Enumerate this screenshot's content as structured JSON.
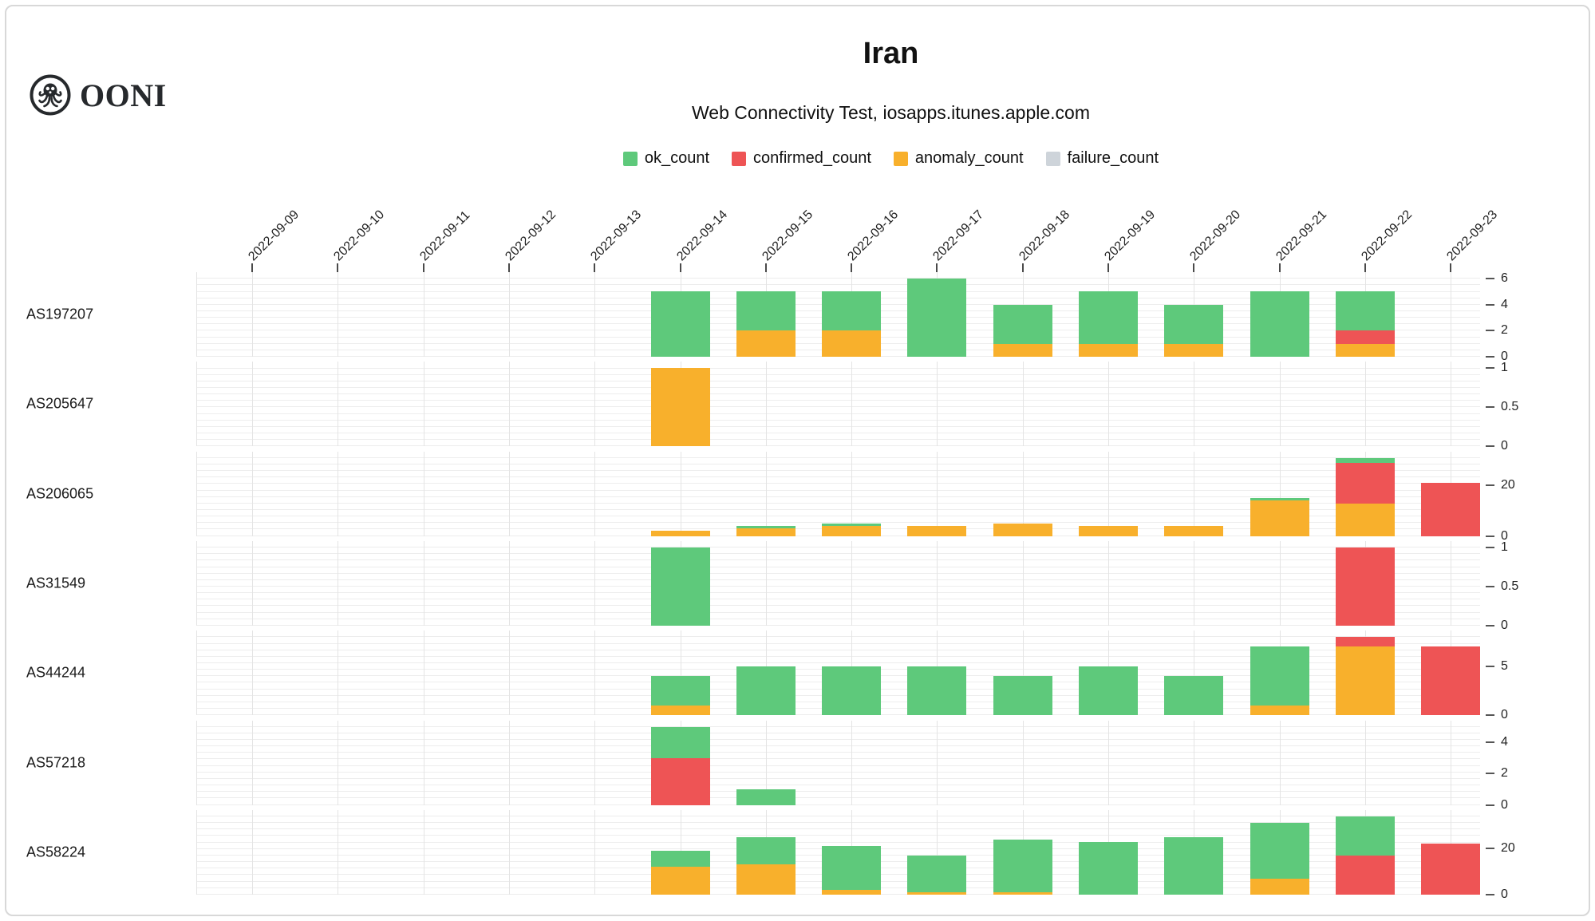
{
  "header": {
    "logo_text": "OONI",
    "title": "Iran",
    "subtitle": "Web Connectivity Test, iosapps.itunes.apple.com"
  },
  "colors": {
    "ok_count": "#5ec97b",
    "confirmed_count": "#ee5455",
    "anomaly_count": "#f8b02c",
    "failure_count": "#ced4da"
  },
  "legend": {
    "items": [
      {
        "label": "ok_count",
        "series": "ok_count"
      },
      {
        "label": "confirmed_count",
        "series": "confirmed_count"
      },
      {
        "label": "anomaly_count",
        "series": "anomaly_count"
      },
      {
        "label": "failure_count",
        "series": "failure_count"
      }
    ]
  },
  "chart_data": {
    "type": "bar",
    "stacked": true,
    "title": "Iran",
    "subtitle": "Web Connectivity Test, iosapps.itunes.apple.com",
    "legend_position": "top",
    "grid": true,
    "x_dates": [
      "2022-09-09",
      "2022-09-10",
      "2022-09-11",
      "2022-09-12",
      "2022-09-13",
      "2022-09-14",
      "2022-09-15",
      "2022-09-16",
      "2022-09-17",
      "2022-09-18",
      "2022-09-19",
      "2022-09-20",
      "2022-09-21",
      "2022-09-22",
      "2022-09-23"
    ],
    "stack_order": [
      "anomaly_count",
      "confirmed_count",
      "ok_count",
      "failure_count"
    ],
    "facets": [
      {
        "label": "AS197207",
        "yticks": [
          0,
          2,
          4,
          6
        ],
        "series": {
          "ok_count": [
            0,
            0,
            0,
            0,
            0,
            5,
            3,
            3,
            6,
            3,
            4,
            3,
            5,
            3,
            0
          ],
          "confirmed_count": [
            0,
            0,
            0,
            0,
            0,
            0,
            0,
            0,
            0,
            0,
            0,
            0,
            0,
            1,
            0
          ],
          "anomaly_count": [
            0,
            0,
            0,
            0,
            0,
            0,
            2,
            2,
            0,
            1,
            1,
            1,
            0,
            1,
            0
          ],
          "failure_count": [
            0,
            0,
            0,
            0,
            0,
            0,
            0,
            0,
            0,
            0,
            0,
            0,
            0,
            0,
            0
          ]
        }
      },
      {
        "label": "AS205647",
        "yticks": [
          0,
          0.5,
          1
        ],
        "series": {
          "ok_count": [
            0,
            0,
            0,
            0,
            0,
            0,
            0,
            0,
            0,
            0,
            0,
            0,
            0,
            0,
            0
          ],
          "confirmed_count": [
            0,
            0,
            0,
            0,
            0,
            0,
            0,
            0,
            0,
            0,
            0,
            0,
            0,
            0,
            0
          ],
          "anomaly_count": [
            0,
            0,
            0,
            0,
            0,
            1,
            0,
            0,
            0,
            0,
            0,
            0,
            0,
            0,
            0
          ],
          "failure_count": [
            0,
            0,
            0,
            0,
            0,
            0,
            0,
            0,
            0,
            0,
            0,
            0,
            0,
            0,
            0
          ]
        }
      },
      {
        "label": "AS206065",
        "yticks": [
          0,
          20
        ],
        "series": {
          "ok_count": [
            0,
            0,
            0,
            0,
            0,
            0,
            1,
            1,
            0,
            0,
            0,
            0,
            1,
            2,
            0
          ],
          "confirmed_count": [
            0,
            0,
            0,
            0,
            0,
            0,
            0,
            0,
            0,
            0,
            0,
            0,
            0,
            16,
            21
          ],
          "anomaly_count": [
            0,
            0,
            0,
            0,
            0,
            2,
            3,
            4,
            4,
            5,
            4,
            4,
            14,
            13,
            0
          ],
          "failure_count": [
            0,
            0,
            0,
            0,
            0,
            0,
            0,
            0,
            0,
            0,
            0,
            0,
            0,
            0,
            0
          ]
        }
      },
      {
        "label": "AS31549",
        "yticks": [
          0,
          0.5,
          1
        ],
        "series": {
          "ok_count": [
            0,
            0,
            0,
            0,
            0,
            1,
            0,
            0,
            0,
            0,
            0,
            0,
            0,
            0,
            0
          ],
          "confirmed_count": [
            0,
            0,
            0,
            0,
            0,
            0,
            0,
            0,
            0,
            0,
            0,
            0,
            0,
            1,
            0
          ],
          "anomaly_count": [
            0,
            0,
            0,
            0,
            0,
            0,
            0,
            0,
            0,
            0,
            0,
            0,
            0,
            0,
            0
          ],
          "failure_count": [
            0,
            0,
            0,
            0,
            0,
            0,
            0,
            0,
            0,
            0,
            0,
            0,
            0,
            0,
            0
          ]
        }
      },
      {
        "label": "AS44244",
        "yticks": [
          0,
          5
        ],
        "series": {
          "ok_count": [
            0,
            0,
            0,
            0,
            0,
            3,
            5,
            5,
            5,
            4,
            5,
            4,
            6,
            0,
            0
          ],
          "confirmed_count": [
            0,
            0,
            0,
            0,
            0,
            0,
            0,
            0,
            0,
            0,
            0,
            0,
            0,
            1,
            7
          ],
          "anomaly_count": [
            0,
            0,
            0,
            0,
            0,
            1,
            0,
            0,
            0,
            0,
            0,
            0,
            1,
            7,
            0
          ],
          "failure_count": [
            0,
            0,
            0,
            0,
            0,
            0,
            0,
            0,
            0,
            0,
            0,
            0,
            0,
            0,
            0
          ]
        }
      },
      {
        "label": "AS57218",
        "yticks": [
          0,
          2,
          4
        ],
        "series": {
          "ok_count": [
            0,
            0,
            0,
            0,
            0,
            2,
            1,
            0,
            0,
            0,
            0,
            0,
            0,
            0,
            0
          ],
          "confirmed_count": [
            0,
            0,
            0,
            0,
            0,
            3,
            0,
            0,
            0,
            0,
            0,
            0,
            0,
            0,
            0
          ],
          "anomaly_count": [
            0,
            0,
            0,
            0,
            0,
            0,
            0,
            0,
            0,
            0,
            0,
            0,
            0,
            0,
            0
          ],
          "failure_count": [
            0,
            0,
            0,
            0,
            0,
            0,
            0,
            0,
            0,
            0,
            0,
            0,
            0,
            0,
            0
          ]
        }
      },
      {
        "label": "AS58224",
        "yticks": [
          0,
          20
        ],
        "series": {
          "ok_count": [
            0,
            0,
            0,
            0,
            0,
            7,
            12,
            19,
            16,
            23,
            23,
            25,
            24,
            17,
            0
          ],
          "confirmed_count": [
            0,
            0,
            0,
            0,
            0,
            0,
            0,
            0,
            0,
            0,
            0,
            0,
            0,
            17,
            22
          ],
          "anomaly_count": [
            0,
            0,
            0,
            0,
            0,
            12,
            13,
            2,
            1,
            1,
            0,
            0,
            7,
            0,
            0
          ],
          "failure_count": [
            0,
            0,
            0,
            0,
            0,
            0,
            0,
            0,
            0,
            0,
            0,
            0,
            0,
            0,
            0
          ]
        }
      }
    ]
  }
}
